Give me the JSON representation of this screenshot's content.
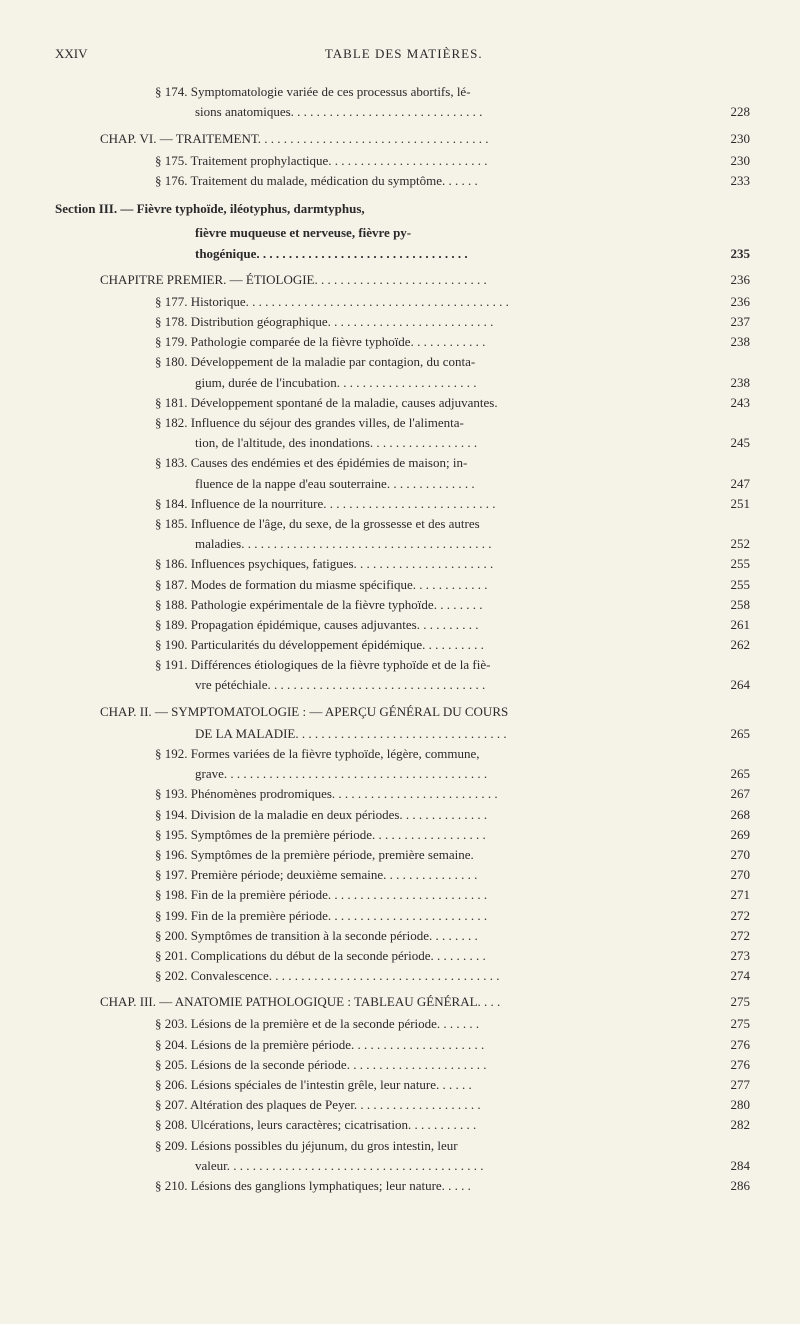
{
  "header": {
    "roman": "XXiV",
    "title": "TABLE DES MATIÈRES."
  },
  "entries": [
    {
      "indent": "indent-1",
      "text": "§ 174. Symptomatologie variée de ces processus abortifs, lé-",
      "page": ""
    },
    {
      "indent": "indent-2",
      "text": "sions anatomiques. . . . . . . . . . . . . . . . . . . . . . . . . . . . . .",
      "page": "228"
    },
    {
      "indent": "indent-heading",
      "text": "CHAP. VI. — TRAITEMENT. . . . . . . . . . . . . . . . . . . . . . . . . . . . . . . . . . . .",
      "page": "230",
      "cls": "chapter-heading"
    },
    {
      "indent": "indent-1",
      "text": "§ 175. Traitement prophylactique. . . . . . . . . . . . . . . . . . . . . . . . .",
      "page": "230"
    },
    {
      "indent": "indent-1",
      "text": "§ 176. Traitement du malade, médication du symptôme. . . . . .",
      "page": "233"
    },
    {
      "indent": "indent-0",
      "text": "Section III. — Fièvre typhoïde, iléotyphus, darmtyphus,",
      "page": "",
      "cls": "section-heading bold"
    },
    {
      "indent": "indent-2",
      "text": "fièvre muqueuse et nerveuse, fièvre py-",
      "page": "",
      "cls": "bold"
    },
    {
      "indent": "indent-2",
      "text": "thogénique. . . . . . . . . . . . . . . . . . . . . . . . . . . . . . . . .",
      "page": "235",
      "cls": "bold"
    },
    {
      "indent": "indent-heading",
      "text": "CHAPITRE PREMIER. — ÉTIOLOGIE. . . . . . . . . . . . . . . . . . . . . . . . . . .",
      "page": "236",
      "cls": "chapter-heading"
    },
    {
      "indent": "indent-1",
      "text": "§ 177. Historique. . . . . . . . . . . . . . . . . . . . . . . . . . . . . . . . . . . . . . . . .",
      "page": "236"
    },
    {
      "indent": "indent-1",
      "text": "§ 178. Distribution géographique. . . . . . . . . . . . . . . . . . . . . . . . . .",
      "page": "237"
    },
    {
      "indent": "indent-1",
      "text": "§ 179. Pathologie comparée de la fièvre typhoïde. . . . . . . . . . . .",
      "page": "238"
    },
    {
      "indent": "indent-1",
      "text": "§ 180. Développement de la maladie par contagion, du conta-",
      "page": ""
    },
    {
      "indent": "indent-2",
      "text": "gium, durée de l'incubation. . . . . . . . . . . . . . . . . . . . . .",
      "page": "238"
    },
    {
      "indent": "indent-1",
      "text": "§ 181. Développement spontané de la maladie, causes adjuvantes.",
      "page": "243"
    },
    {
      "indent": "indent-1",
      "text": "§ 182. Influence du séjour des grandes villes, de l'alimenta-",
      "page": ""
    },
    {
      "indent": "indent-2",
      "text": "tion, de l'altitude, des inondations. . . . . . . . . . . . . . . . .",
      "page": "245"
    },
    {
      "indent": "indent-1",
      "text": "§ 183. Causes des endémies et des épidémies de maison; in-",
      "page": ""
    },
    {
      "indent": "indent-2",
      "text": "fluence de la nappe d'eau souterraine. . . . . . . . . . . . . .",
      "page": "247"
    },
    {
      "indent": "indent-1",
      "text": "§ 184. Influence de la nourriture. . . . . . . . . . . . . . . . . . . . . . . . . . .",
      "page": "251"
    },
    {
      "indent": "indent-1",
      "text": "§ 185. Influence de l'âge, du sexe, de la grossesse et des autres",
      "page": ""
    },
    {
      "indent": "indent-2",
      "text": "maladies. . . . . . . . . . . . . . . . . . . . . . . . . . . . . . . . . . . . . . .",
      "page": "252"
    },
    {
      "indent": "indent-1",
      "text": "§ 186. Influences psychiques, fatigues. . . . . . . . . . . . . . . . . . . . . .",
      "page": "255"
    },
    {
      "indent": "indent-1",
      "text": "§ 187. Modes de formation du miasme spécifique. . . . . . . . . . . .",
      "page": "255"
    },
    {
      "indent": "indent-1",
      "text": "§ 188. Pathologie expérimentale de la fièvre typhoïde. . . . . . . .",
      "page": "258"
    },
    {
      "indent": "indent-1",
      "text": "§ 189. Propagation épidémique, causes adjuvantes. . . . . . . . . .",
      "page": "261"
    },
    {
      "indent": "indent-1",
      "text": "§ 190. Particularités du développement épidémique. . . . . . . . . .",
      "page": "262"
    },
    {
      "indent": "indent-1",
      "text": "§ 191. Différences étiologiques de la fièvre typhoïde et de la fiè-",
      "page": ""
    },
    {
      "indent": "indent-2",
      "text": "vre pétéchiale. . . . . . . . . . . . . . . . . . . . . . . . . . . . . . . . . .",
      "page": "264"
    },
    {
      "indent": "indent-heading",
      "text": "CHAP. II. — SYMPTOMATOLOGIE : — APERÇU GÉNÉRAL DU COURS",
      "page": "",
      "cls": "chapter-heading"
    },
    {
      "indent": "indent-2",
      "text": "DE LA MALADIE. . . . . . . . . . . . . . . . . . . . . . . . . . . . . . . . .",
      "page": "265"
    },
    {
      "indent": "indent-1",
      "text": "§ 192. Formes variées de la fièvre typhoïde, légère, commune,",
      "page": ""
    },
    {
      "indent": "indent-2",
      "text": "grave. . . . . . . . . . . . . . . . . . . . . . . . . . . . . . . . . . . . . . . . .",
      "page": "265"
    },
    {
      "indent": "indent-1",
      "text": "§ 193. Phénomènes prodromiques. . . . . . . . . . . . . . . . . . . . . . . . . .",
      "page": "267"
    },
    {
      "indent": "indent-1",
      "text": "§ 194. Division de la maladie en deux périodes. . . . . . . . . . . . . .",
      "page": "268"
    },
    {
      "indent": "indent-1",
      "text": "§ 195. Symptômes de la première période. . . . . . . . . . . . . . . . . .",
      "page": "269"
    },
    {
      "indent": "indent-1",
      "text": "§ 196. Symptômes de la première période, première semaine.",
      "page": "270"
    },
    {
      "indent": "indent-1",
      "text": "§ 197. Première période; deuxième semaine. . . . . . . . . . . . . . .",
      "page": "270"
    },
    {
      "indent": "indent-1",
      "text": "§ 198. Fin de la première période. . . . . . . . . . . . . . . . . . . . . . . . .",
      "page": "271"
    },
    {
      "indent": "indent-1",
      "text": "§ 199. Fin de la première période. . . . . . . . . . . . . . . . . . . . . . . . .",
      "page": "272"
    },
    {
      "indent": "indent-1",
      "text": "§ 200. Symptômes de transition à la seconde période. . . . . . . .",
      "page": "272"
    },
    {
      "indent": "indent-1",
      "text": "§ 201. Complications du début de la seconde période. . . . . . . . .",
      "page": "273"
    },
    {
      "indent": "indent-1",
      "text": "§ 202. Convalescence. . . . . . . . . . . . . . . . . . . . . . . . . . . . . . . . . . . .",
      "page": "274"
    },
    {
      "indent": "indent-heading",
      "text": "CHAP. III. — ANATOMIE PATHOLOGIQUE : TABLEAU GÉNÉRAL. . . .",
      "page": "275",
      "cls": "chapter-heading"
    },
    {
      "indent": "indent-1",
      "text": "§ 203. Lésions de la première et de la seconde période. . . . . . .",
      "page": "275"
    },
    {
      "indent": "indent-1",
      "text": "§ 204. Lésions de la première période. . . . . . . . . . . . . . . . . . . . .",
      "page": "276"
    },
    {
      "indent": "indent-1",
      "text": "§ 205. Lésions de la seconde période. . . . . . . . . . . . . . . . . . . . . .",
      "page": "276"
    },
    {
      "indent": "indent-1",
      "text": "§ 206. Lésions spéciales de l'intestin grêle, leur nature. . . . . .",
      "page": "277"
    },
    {
      "indent": "indent-1",
      "text": "§ 207. Altération des plaques de Peyer. . . . . . . . . . . . . . . . . . . .",
      "page": "280"
    },
    {
      "indent": "indent-1",
      "text": "§ 208. Ulcérations, leurs caractères; cicatrisation. . . . . . . . . . .",
      "page": "282"
    },
    {
      "indent": "indent-1",
      "text": "§ 209. Lésions possibles du jéjunum, du gros intestin, leur",
      "page": ""
    },
    {
      "indent": "indent-2",
      "text": "valeur. . . . . . . . . . . . . . . . . . . . . . . . . . . . . . . . . . . . . . . .",
      "page": "284"
    },
    {
      "indent": "indent-1",
      "text": "§ 210. Lésions des ganglions lymphatiques; leur nature. . . . .",
      "page": "286"
    }
  ]
}
